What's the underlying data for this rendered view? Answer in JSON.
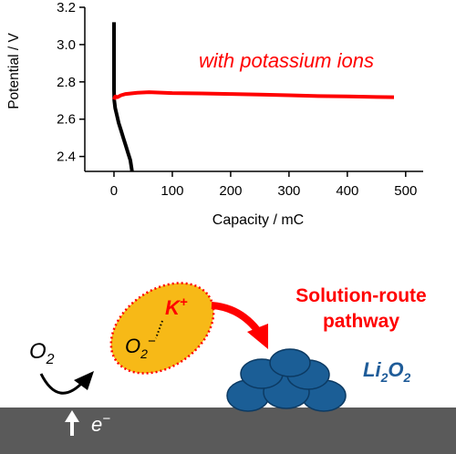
{
  "chart_data": {
    "type": "line",
    "xlabel": "Capacity / mC",
    "ylabel": "Potential / V",
    "xlim": [
      -50,
      530
    ],
    "ylim": [
      2.32,
      3.2
    ],
    "x_ticks": [
      0,
      100,
      200,
      300,
      400,
      500
    ],
    "y_ticks": [
      2.4,
      2.6,
      2.8,
      3.0,
      3.2
    ],
    "x_tick_labels": [
      "0",
      "100",
      "200",
      "300",
      "400",
      "500"
    ],
    "y_tick_labels": [
      "2.4",
      "2.6",
      "2.8",
      "3.0",
      "3.2"
    ],
    "grid": false,
    "annotation": "with potassium ions",
    "series": [
      {
        "color": "#000000",
        "points": [
          [
            0,
            3.12
          ],
          [
            0,
            2.76
          ],
          [
            0.5,
            2.7
          ],
          [
            2,
            2.66
          ],
          [
            5,
            2.62
          ],
          [
            8,
            2.58
          ],
          [
            12,
            2.54
          ],
          [
            16,
            2.5
          ],
          [
            20,
            2.46
          ],
          [
            24,
            2.42
          ],
          [
            28,
            2.38
          ],
          [
            31,
            2.32
          ]
        ]
      },
      {
        "name": "with potassium ions",
        "color": "#ff0000",
        "points": [
          [
            0,
            2.705
          ],
          [
            2,
            2.722
          ],
          [
            6,
            2.718
          ],
          [
            12,
            2.728
          ],
          [
            20,
            2.735
          ],
          [
            40,
            2.742
          ],
          [
            60,
            2.745
          ],
          [
            100,
            2.74
          ],
          [
            150,
            2.738
          ],
          [
            200,
            2.735
          ],
          [
            250,
            2.732
          ],
          [
            300,
            2.728
          ],
          [
            350,
            2.724
          ],
          [
            400,
            2.722
          ],
          [
            450,
            2.719
          ],
          [
            480,
            2.718
          ]
        ]
      }
    ]
  },
  "schematic": {
    "o2_base": "O",
    "o2_sub": "2",
    "k_base": "K",
    "k_sup": "+",
    "superoxide_base": "O",
    "superoxide_sub": "2",
    "superoxide_sup": "−",
    "pathway_line1": "Solution-route",
    "pathway_line2": "pathway",
    "electron_base": "e",
    "electron_sup": "−",
    "product_li": "Li",
    "product_sub1": "2",
    "product_o": "O",
    "product_sub2": "2",
    "colors": {
      "red": "#ff0000",
      "orange": "#f7b917",
      "blue_fill": "#1b5e96",
      "blue_text": "#1f5c99",
      "electrode": "#5a5a5a"
    }
  }
}
